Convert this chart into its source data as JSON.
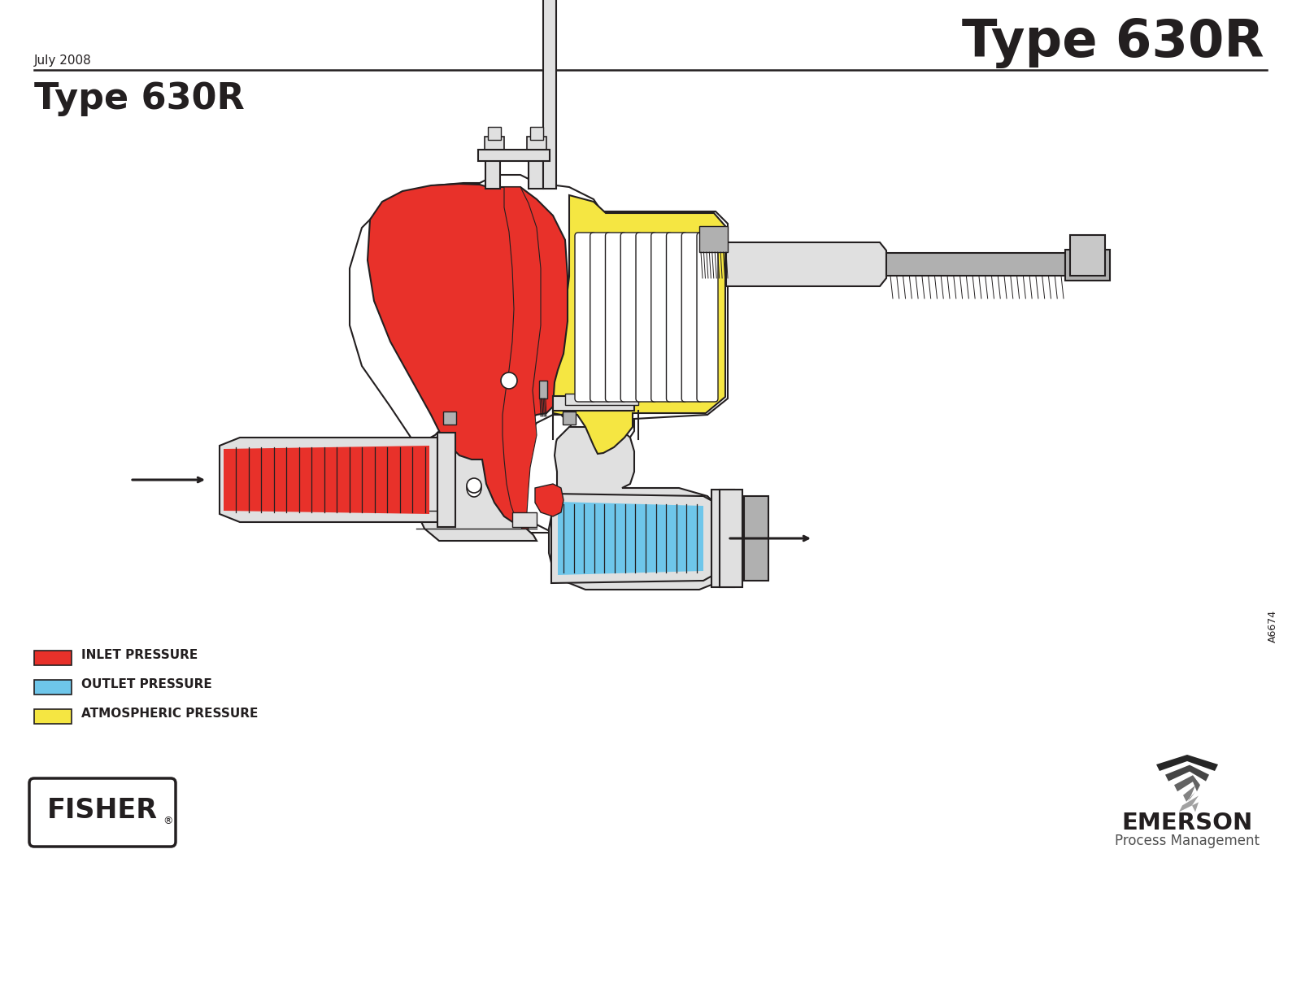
{
  "title_right": "Type 630R",
  "title_left": "Type 630R",
  "date_text": "July 2008",
  "figure_id": "A6674",
  "legend": [
    {
      "label": "INLET PRESSURE",
      "color": "#E8312A"
    },
    {
      "label": "OUTLET PRESSURE",
      "color": "#6EC6EA"
    },
    {
      "label": "ATMOSPHERIC PRESSURE",
      "color": "#F5E642"
    }
  ],
  "bg_color": "#FFFFFF",
  "outline_color": "#231F20",
  "inlet_color": "#E8312A",
  "outlet_color": "#6EC6EA",
  "atm_color": "#F5E642",
  "fisher_text": "FISHER",
  "emerson_text": "EMERSON",
  "emerson_sub": "Process Management"
}
